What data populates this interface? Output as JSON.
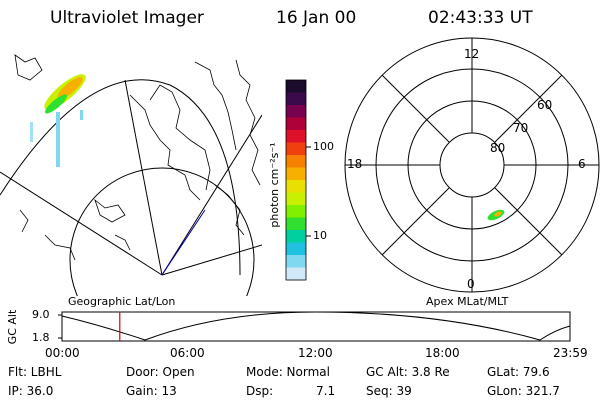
{
  "header": {
    "title": "Ultraviolet Imager",
    "date": "16 Jan 00",
    "time": "02:43:33 UT"
  },
  "colorbar": {
    "unit_label": "photon cm⁻²s⁻¹",
    "tick_labels": [
      "100",
      "10"
    ],
    "colors_top_to_bottom": [
      "#1c0c2c",
      "#3a0a4a",
      "#7a0050",
      "#b0003a",
      "#e0102a",
      "#f04010",
      "#f88000",
      "#f8b000",
      "#e8e000",
      "#c8f000",
      "#80f000",
      "#30e030",
      "#00d0a0",
      "#20c0e0",
      "#80d8f0",
      "#d0e8f8"
    ]
  },
  "maps": {
    "left_label": "Geographic Lat/Lon",
    "right_label": "Apex MLat/MLT",
    "mlt_labels": [
      "12",
      "18",
      "6",
      "0"
    ],
    "mlat_labels": [
      "60",
      "70",
      "80"
    ]
  },
  "altitude_plot": {
    "ylabel": "GC Alt",
    "y_ticks": [
      "9.0",
      "1.8"
    ],
    "x_ticks": [
      "00:00",
      "06:00",
      "12:00",
      "18:00",
      "23:59"
    ],
    "current_time_marker_hours": 2.73
  },
  "footer": {
    "flt": "Flt: LBHL",
    "ip": "IP: 36.0",
    "door": "Door: Open",
    "gain": "Gain: 13",
    "mode": "Mode: Normal",
    "dsp_label": "Dsp:",
    "dsp_value": "7.1",
    "gcalt": "GC Alt: 3.8 Re",
    "seq": "Seq: 39",
    "glat": "GLat:   79.6",
    "glon": "GLon: 321.7"
  }
}
